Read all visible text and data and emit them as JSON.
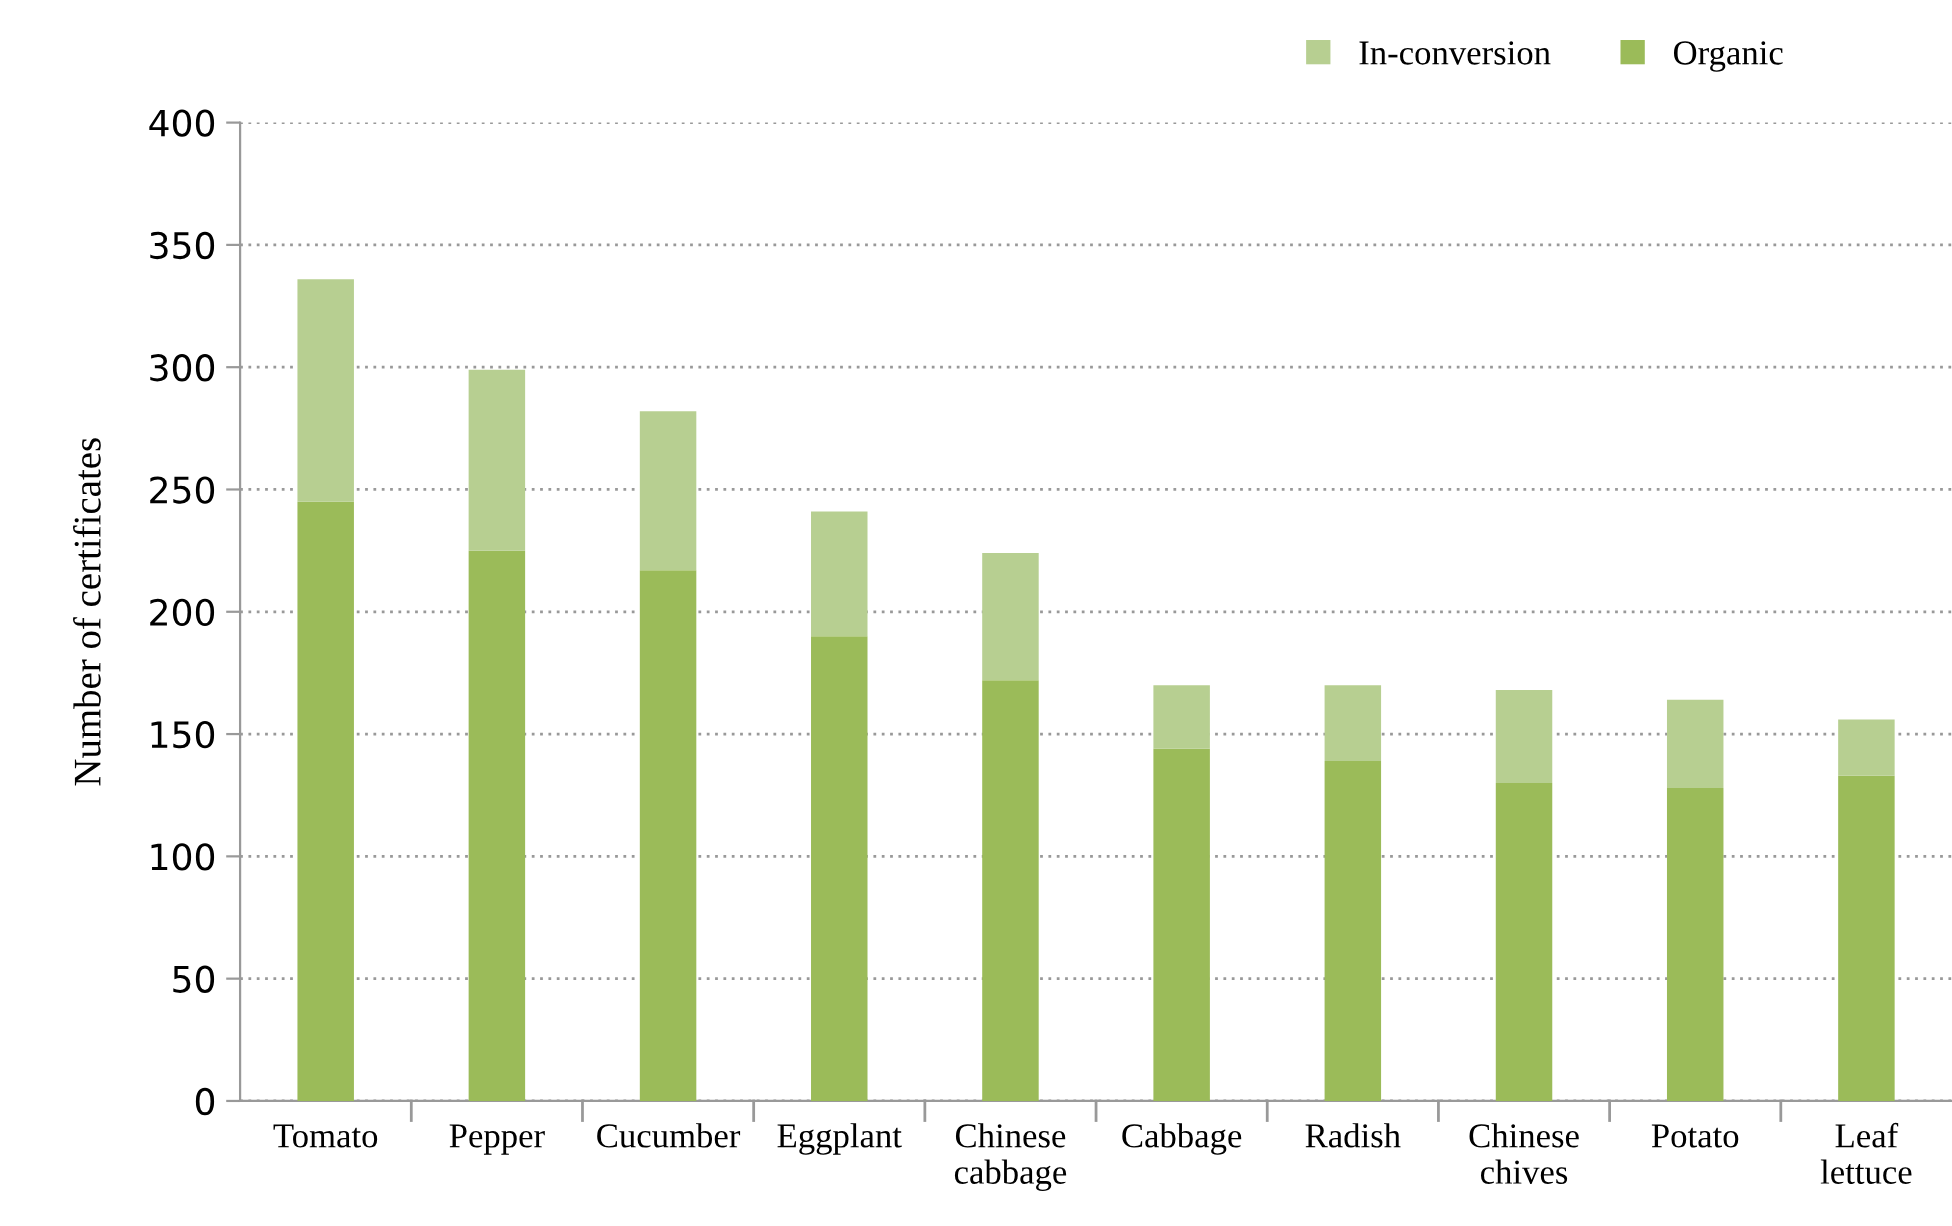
{
  "chart_data": {
    "type": "bar",
    "stacked": true,
    "ylabel": "Number of certificates",
    "categories": [
      "Tomato",
      "Pepper",
      "Cucumber",
      "Eggplant",
      "Chinese\ncabbage",
      "Cabbage",
      "Radish",
      "Chinese\nchives",
      "Potato",
      "Leaf\nlettuce"
    ],
    "series": [
      {
        "name": "Organic",
        "color": "#9bbb59",
        "values": [
          245,
          225,
          217,
          190,
          172,
          144,
          139,
          130,
          128,
          133
        ]
      },
      {
        "name": "In-conversion",
        "color": "#b7cf91",
        "values": [
          91,
          74,
          65,
          51,
          52,
          26,
          31,
          38,
          36,
          23
        ]
      }
    ],
    "ylim": [
      0,
      400
    ],
    "yticks": [
      0,
      50,
      100,
      150,
      200,
      250,
      300,
      350,
      400
    ],
    "grid": "y",
    "legend": "top right"
  }
}
